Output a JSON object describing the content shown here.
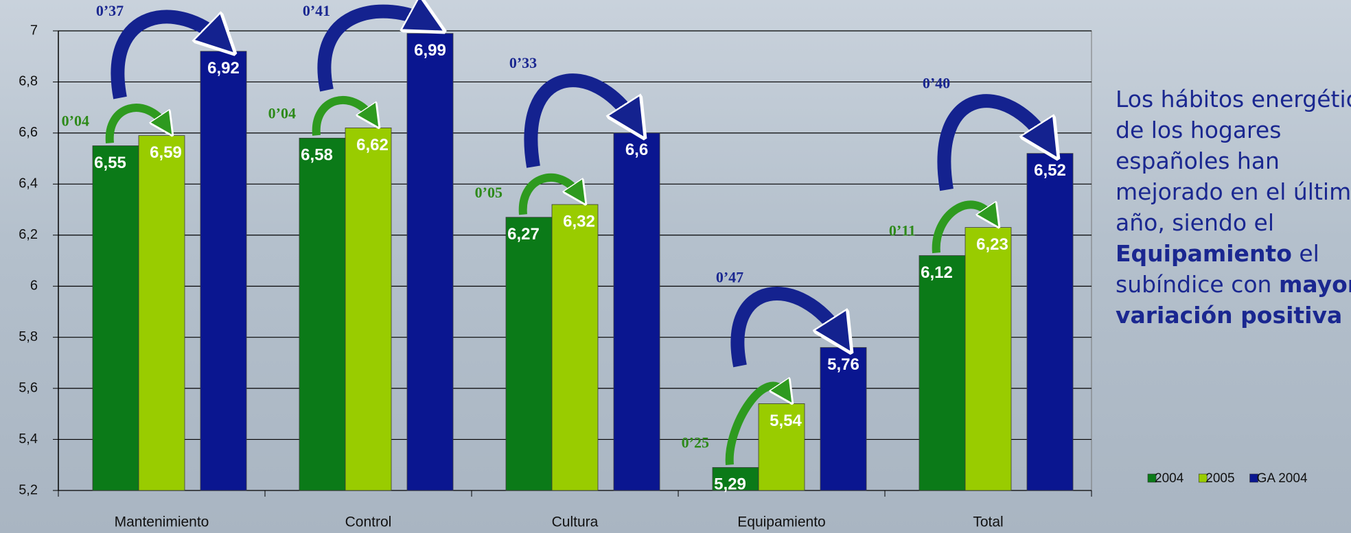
{
  "chart_data": {
    "type": "bar",
    "categories": [
      "Mantenimiento",
      "Control",
      "Cultura",
      "Equipamiento",
      "Total"
    ],
    "series": [
      {
        "name": "2004",
        "color": "#0b7a18",
        "values": [
          6.55,
          6.58,
          6.27,
          5.29,
          6.12
        ],
        "value_labels": [
          "6,55",
          "6,58",
          "6,27",
          "5,29",
          "6,12"
        ]
      },
      {
        "name": "2005",
        "color": "#99cc00",
        "values": [
          6.59,
          6.62,
          6.32,
          5.54,
          6.23
        ],
        "value_labels": [
          "6,59",
          "6,62",
          "6,32",
          "5,54",
          "6,23"
        ]
      },
      {
        "name": "GA 2004",
        "color": "#0a1690",
        "values": [
          6.92,
          6.99,
          6.6,
          5.76,
          6.52
        ],
        "value_labels": [
          "6,92",
          "6,99",
          "6,6",
          "5,76",
          "6,52"
        ]
      }
    ],
    "variation_2005": [
      "0’04",
      "0’04",
      "0’05",
      "0’25",
      "0’11"
    ],
    "variation_ga": [
      "0’37",
      "0’41",
      "0’33",
      "0’47",
      "0’40"
    ],
    "ylim": [
      5.2,
      7
    ],
    "yticks": [
      {
        "value": 5.2,
        "label": "5,2"
      },
      {
        "value": 5.4,
        "label": "5,4"
      },
      {
        "value": 5.6,
        "label": "5,6"
      },
      {
        "value": 5.8,
        "label": "5,8"
      },
      6,
      {
        "value": 6.2,
        "label": "6,2"
      },
      {
        "value": 6.4,
        "label": "6,4"
      },
      {
        "value": 6.6,
        "label": "6,6"
      },
      {
        "value": 6.8,
        "label": "6,8"
      },
      7
    ],
    "grid": true,
    "legend": "right",
    "note": [
      {
        "text": "Los hábitos energéticos de los hogares españoles han mejorado en el último año, siendo el "
      },
      {
        "text": "Equipamiento",
        "bold": true
      },
      {
        "text": " el subíndice con "
      },
      {
        "text": "mayor variación positiva",
        "bold": true
      }
    ]
  }
}
